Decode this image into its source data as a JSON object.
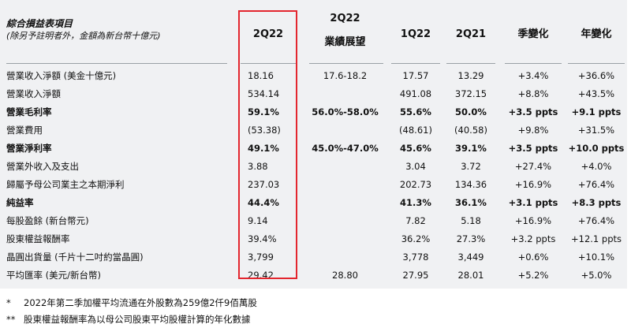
{
  "table": {
    "caption_title": "綜合損益表項目",
    "caption_sub": "(除另予註明者外，金額為新台幣十億元)",
    "columns": {
      "q2_22": "2Q22",
      "guidance_l1": "2Q22",
      "guidance_l2": "業績展望",
      "q1_22": "1Q22",
      "q2_21": "2Q21",
      "qoq": "季變化",
      "yoy": "年變化"
    },
    "rows": [
      {
        "label": "營業收入淨額 (美金十億元)",
        "v": "18.16",
        "g": "17.6-18.2",
        "q1": "17.57",
        "q221": "13.29",
        "qoq": "+3.4%",
        "yoy": "+36.6%",
        "bold": false
      },
      {
        "label": "營業收入淨額",
        "v": "534.14",
        "g": "",
        "q1": "491.08",
        "q221": "372.15",
        "qoq": "+8.8%",
        "yoy": "+43.5%",
        "bold": false
      },
      {
        "label": "營業毛利率",
        "v": "59.1%",
        "g": "56.0%-58.0%",
        "q1": "55.6%",
        "q221": "50.0%",
        "qoq": "+3.5 ppts",
        "yoy": "+9.1 ppts",
        "bold": true
      },
      {
        "label": "營業費用",
        "v": "(53.38)",
        "g": "",
        "q1": "(48.61)",
        "q221": "(40.58)",
        "qoq": "+9.8%",
        "yoy": "+31.5%",
        "bold": false
      },
      {
        "label": "營業淨利率",
        "v": "49.1%",
        "g": "45.0%-47.0%",
        "q1": "45.6%",
        "q221": "39.1%",
        "qoq": "+3.5 ppts",
        "yoy": "+10.0 ppts",
        "bold": true
      },
      {
        "label": "營業外收入及支出",
        "v": "3.88",
        "g": "",
        "q1": "3.04",
        "q221": "3.72",
        "qoq": "+27.4%",
        "yoy": "+4.0%",
        "bold": false
      },
      {
        "label": "歸屬予母公司業主之本期淨利",
        "v": "237.03",
        "g": "",
        "q1": "202.73",
        "q221": "134.36",
        "qoq": "+16.9%",
        "yoy": "+76.4%",
        "bold": false
      },
      {
        "label": "純益率",
        "v": "44.4%",
        "g": "",
        "q1": "41.3%",
        "q221": "36.1%",
        "qoq": "+3.1 ppts",
        "yoy": "+8.3 ppts",
        "bold": true
      },
      {
        "label": "每股盈餘 (新台幣元)",
        "v": "9.14",
        "g": "",
        "q1": "7.82",
        "q221": "5.18",
        "qoq": "+16.9%",
        "yoy": "+76.4%",
        "bold": false
      },
      {
        "label": "股東權益報酬率",
        "v": "39.4%",
        "g": "",
        "q1": "36.2%",
        "q221": "27.3%",
        "qoq": "+3.2 ppts",
        "yoy": "+12.1 ppts",
        "bold": false
      },
      {
        "label": "晶圓出貨量 (千片十二吋約當晶圓)",
        "v": "3,799",
        "g": "",
        "q1": "3,778",
        "q221": "3,449",
        "qoq": "+0.6%",
        "yoy": "+10.1%",
        "bold": false
      },
      {
        "label": "平均匯率 (美元/新台幣)",
        "v": "29.42",
        "g": "28.80",
        "q1": "27.95",
        "q221": "28.01",
        "qoq": "+5.2%",
        "yoy": "+5.0%",
        "bold": false
      }
    ]
  },
  "footnotes": [
    {
      "mark": "*",
      "text": "2022年第二季加權平均流通在外股數為259億2仟9佰萬股"
    },
    {
      "mark": "**",
      "text": "股東權益報酬率為以母公司股東平均股權計算的年化數據"
    }
  ],
  "colors": {
    "panel": "#f0f1f3",
    "highlight": "#e3262e",
    "separator": "#9aa0a6"
  }
}
